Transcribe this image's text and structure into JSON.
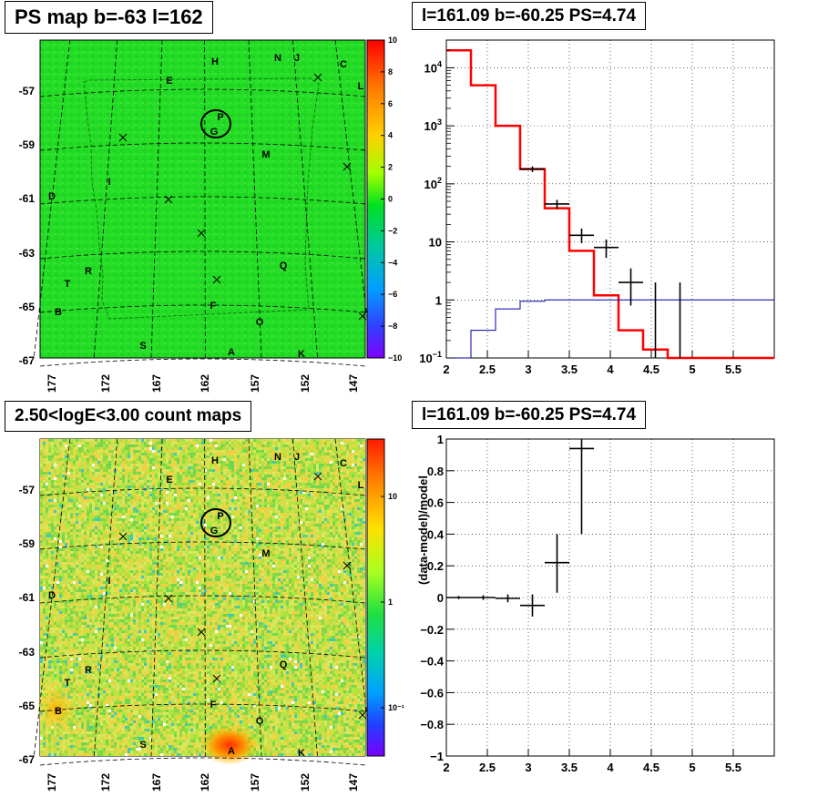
{
  "panels": {
    "ps_map": {
      "title": "PS map b=-63 l=162",
      "lat_ticks": [
        "-57",
        "-59",
        "-61",
        "-63",
        "-65",
        "-67"
      ],
      "lon_ticks": [
        "177",
        "172",
        "167",
        "162",
        "157",
        "152",
        "147"
      ],
      "colorbar_ticks": [
        "10",
        "8",
        "6",
        "4",
        "2",
        "0",
        "−2",
        "−4",
        "−6",
        "−8",
        "−10"
      ],
      "base_color": "#22dd22",
      "source_labels": [
        {
          "t": "H",
          "c": "236,67"
        },
        {
          "t": "N",
          "c": "305,63"
        },
        {
          "t": "J",
          "c": "326,63"
        },
        {
          "t": "C",
          "c": "377,70"
        },
        {
          "t": "L",
          "c": "396,94"
        },
        {
          "t": "E",
          "c": "186,88"
        },
        {
          "t": "P",
          "c": "242,128"
        },
        {
          "t": "G",
          "c": "235,144"
        },
        {
          "t": "M",
          "c": "292,169"
        },
        {
          "t": "I",
          "c": "120,199"
        },
        {
          "t": "D",
          "c": "57,215"
        },
        {
          "t": "Q",
          "c": "311,291"
        },
        {
          "t": "R",
          "c": "97,297"
        },
        {
          "t": "T",
          "c": "74,311"
        },
        {
          "t": "F",
          "c": "234,335"
        },
        {
          "t": "B",
          "c": "64,342"
        },
        {
          "t": "O",
          "c": "285,353"
        },
        {
          "t": "S",
          "c": "157,379"
        },
        {
          "t": "A",
          "c": "254,386"
        },
        {
          "t": "K",
          "c": "331,388"
        }
      ]
    },
    "spectrum": {
      "title": "l=161.09 b=-60.25 PS=4.74"
    },
    "count_map": {
      "title": "2.50<logE<3.00 count maps",
      "lat_ticks": [
        "-57",
        "-59",
        "-61",
        "-63",
        "-65",
        "-67"
      ],
      "lon_ticks": [
        "177",
        "172",
        "167",
        "162",
        "157",
        "152",
        "147"
      ],
      "colorbar_ticks": [
        "10",
        "1",
        "10⁻¹"
      ],
      "source_labels": [
        {
          "t": "H",
          "c": "236,505"
        },
        {
          "t": "N",
          "c": "305,501"
        },
        {
          "t": "J",
          "c": "326,501"
        },
        {
          "t": "C",
          "c": "377,508"
        },
        {
          "t": "L",
          "c": "396,532"
        },
        {
          "t": "E",
          "c": "186,526"
        },
        {
          "t": "P",
          "c": "242,566"
        },
        {
          "t": "G",
          "c": "235,582"
        },
        {
          "t": "M",
          "c": "292,607"
        },
        {
          "t": "I",
          "c": "120,637"
        },
        {
          "t": "D",
          "c": "57,653"
        },
        {
          "t": "Q",
          "c": "311,729"
        },
        {
          "t": "R",
          "c": "97,735"
        },
        {
          "t": "T",
          "c": "74,749"
        },
        {
          "t": "F",
          "c": "234,773"
        },
        {
          "t": "B",
          "c": "64,780"
        },
        {
          "t": "O",
          "c": "285,791"
        },
        {
          "t": "S",
          "c": "157,817"
        },
        {
          "t": "A",
          "c": "254,824"
        },
        {
          "t": "K",
          "c": "331,826"
        }
      ]
    },
    "residual": {
      "title": "l=161.09 b=-60.25 PS=4.74"
    }
  },
  "chart_data": [
    {
      "type": "heatmap",
      "title": "PS map b=-63 l=162",
      "xlabel": "",
      "ylabel": "",
      "xlim": [
        178,
        146
      ],
      "ylim": [
        -68.5,
        -56.5
      ],
      "zlim": [
        -10,
        10
      ],
      "grid": true
    },
    {
      "type": "line",
      "title": "l=161.09 b=-60.25 PS=4.74",
      "xlabel": "",
      "ylabel": "",
      "xlim": [
        2,
        6
      ],
      "ylim": [
        0.1,
        30000
      ],
      "yscale": "log",
      "x_ticks": [
        "2",
        "2.5",
        "3",
        "3.5",
        "4",
        "4.5",
        "5",
        "5.5"
      ],
      "y_ticks": [
        {
          "v": 10000,
          "b": "10",
          "e": "4"
        },
        {
          "v": 1000,
          "b": "10",
          "e": "3"
        },
        {
          "v": 100,
          "b": "10",
          "e": "2"
        },
        {
          "v": 10,
          "b": "10",
          "e": ""
        },
        {
          "v": 1,
          "b": "1",
          "e": ""
        },
        {
          "v": 0.1,
          "b": "10",
          "e": "−1"
        }
      ],
      "grid": true,
      "colors": {
        "model": "#ff0000",
        "background": "#0000aa",
        "data": "#000000"
      },
      "series": [
        {
          "style": "step",
          "color": "#ff0000",
          "edges": [
            2,
            2.3,
            2.6,
            2.9,
            3.2,
            3.5,
            3.8,
            4.1,
            4.4,
            4.7,
            5,
            6
          ],
          "values": [
            20000,
            5000,
            1000,
            180,
            38,
            7,
            1.2,
            0.3,
            0.14,
            0.1,
            0.1
          ]
        },
        {
          "style": "step",
          "color": "#0000aa",
          "edges": [
            2,
            2.3,
            2.6,
            2.9,
            3.2,
            3.5,
            3.8,
            4.1,
            4.4,
            4.7,
            5,
            6
          ],
          "values": [
            0.1,
            0.3,
            0.7,
            0.95,
            1.0,
            1.0,
            1.0,
            1.0,
            1.0,
            1.0,
            1.0
          ]
        },
        {
          "style": "errorbars",
          "color": "#000000",
          "points": [
            {
              "x": 3.05,
              "y": 180,
              "xerr": 0.15,
              "ylo": 160,
              "yhi": 200
            },
            {
              "x": 3.35,
              "y": 45,
              "xerr": 0.15,
              "ylo": 37,
              "yhi": 53
            },
            {
              "x": 3.65,
              "y": 13,
              "xerr": 0.15,
              "ylo": 9.5,
              "yhi": 17
            },
            {
              "x": 3.95,
              "y": 8,
              "xerr": 0.15,
              "ylo": 5.3,
              "yhi": 11
            },
            {
              "x": 4.25,
              "y": 2,
              "xerr": 0.15,
              "ylo": 0.8,
              "yhi": 3.5
            },
            {
              "x": 4.55,
              "y": 1,
              "xerr": 0,
              "ylo": 0.1,
              "yhi": 2
            },
            {
              "x": 4.85,
              "y": 1,
              "xerr": 0,
              "ylo": 0.1,
              "yhi": 2
            }
          ]
        }
      ]
    },
    {
      "type": "heatmap",
      "title": "2.50<logE<3.00 count maps",
      "xlabel": "",
      "ylabel": "",
      "xlim": [
        178,
        146
      ],
      "ylim": [
        -68.5,
        -56.5
      ],
      "zscale": "log",
      "zlim": [
        0.05,
        30
      ],
      "grid": true
    },
    {
      "type": "scatter",
      "title": "l=161.09 b=-60.25 PS=4.74",
      "xlabel": "",
      "ylabel": "(data-model)/model",
      "xlim": [
        2,
        6
      ],
      "ylim": [
        -1,
        1
      ],
      "x_ticks": [
        "2",
        "2.5",
        "3",
        "3.5",
        "4",
        "4.5",
        "5",
        "5.5"
      ],
      "y_ticks": [
        "1",
        "0.8",
        "0.6",
        "0.4",
        "0.2",
        "0",
        "−0.2",
        "−0.4",
        "−0.6",
        "−0.8",
        "−1"
      ],
      "grid": true,
      "points": [
        {
          "x": 2.15,
          "y": 0.0,
          "xerr": 0.15,
          "ylo": -0.01,
          "yhi": 0.01
        },
        {
          "x": 2.45,
          "y": 0.0,
          "xerr": 0.15,
          "ylo": -0.015,
          "yhi": 0.015
        },
        {
          "x": 2.75,
          "y": -0.005,
          "xerr": 0.15,
          "ylo": -0.03,
          "yhi": 0.02
        },
        {
          "x": 3.05,
          "y": -0.05,
          "xerr": 0.15,
          "ylo": -0.12,
          "yhi": 0.02
        },
        {
          "x": 3.35,
          "y": 0.22,
          "xerr": 0.15,
          "ylo": 0.03,
          "yhi": 0.4
        },
        {
          "x": 3.65,
          "y": 0.94,
          "xerr": 0.15,
          "ylo": 0.4,
          "yhi": 1.0
        }
      ]
    }
  ]
}
